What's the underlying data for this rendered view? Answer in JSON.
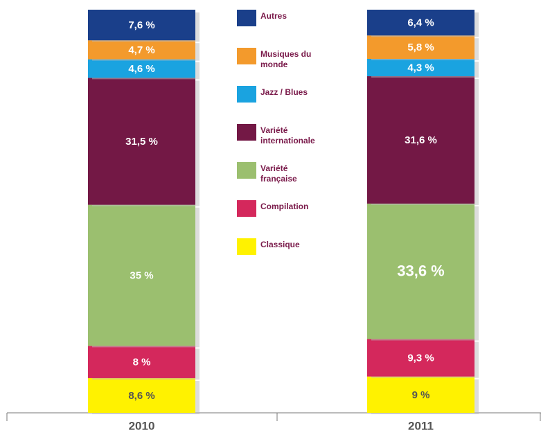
{
  "chart_data": {
    "type": "stacked_bar",
    "categories": [
      "2010",
      "2011"
    ],
    "ylim": [
      0,
      100
    ],
    "series": [
      {
        "name": "Classique",
        "color": "#fff200",
        "values": [
          8.6,
          9
        ],
        "value_labels": [
          "8,6 %",
          "9 %"
        ]
      },
      {
        "name": "Compilation",
        "color": "#d4285c",
        "values": [
          8,
          9.3
        ],
        "value_labels": [
          "8 %",
          "9,3 %"
        ]
      },
      {
        "name": "Variété française",
        "color": "#9bbf6f",
        "values": [
          35,
          33.6
        ],
        "value_labels": [
          "35 %",
          "33,6 %"
        ]
      },
      {
        "name": "Variété internationale",
        "color": "#731845",
        "values": [
          31.5,
          31.6
        ],
        "value_labels": [
          "31,5 %",
          "31,6 %"
        ]
      },
      {
        "name": "Jazz / Blues",
        "color": "#1aa3e0",
        "values": [
          4.6,
          4.3
        ],
        "value_labels": [
          "4,6 %",
          "4,3 %"
        ]
      },
      {
        "name": "Musiques du monde",
        "color": "#f39a2c",
        "values": [
          4.7,
          5.8
        ],
        "value_labels": [
          "4,7 %",
          "5,8 %"
        ]
      },
      {
        "name": "Autres",
        "color": "#1a3f8a",
        "values": [
          7.6,
          6.4
        ],
        "value_labels": [
          "7,6 %",
          "6,4 %"
        ]
      }
    ]
  }
}
